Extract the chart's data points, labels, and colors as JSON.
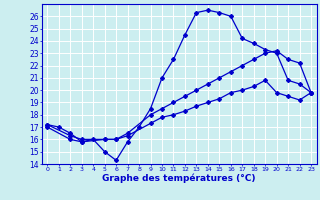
{
  "title": "",
  "xlabel": "Graphe des températures (°C)",
  "ylabel": "",
  "bg_color": "#cceef0",
  "grid_color": "#ffffff",
  "line_color": "#0000cc",
  "ylim": [
    14,
    27
  ],
  "xlim": [
    -0.5,
    23.5
  ],
  "yticks": [
    14,
    15,
    16,
    17,
    18,
    19,
    20,
    21,
    22,
    23,
    24,
    25,
    26
  ],
  "xticks": [
    0,
    1,
    2,
    3,
    4,
    5,
    6,
    7,
    8,
    9,
    10,
    11,
    12,
    13,
    14,
    15,
    16,
    17,
    18,
    19,
    20,
    21,
    22,
    23
  ],
  "series": [
    {
      "x": [
        0,
        1,
        2,
        3,
        4,
        5,
        6,
        7,
        8,
        9,
        10,
        11,
        12,
        13,
        14,
        15,
        16,
        17,
        18,
        19,
        20,
        21,
        22,
        23
      ],
      "y": [
        17.2,
        17.0,
        16.5,
        15.8,
        16.0,
        15.0,
        14.3,
        15.8,
        17.0,
        18.5,
        21.0,
        22.5,
        24.5,
        26.3,
        26.5,
        26.3,
        26.0,
        24.2,
        23.8,
        23.3,
        23.0,
        20.8,
        20.5,
        19.8
      ]
    },
    {
      "x": [
        0,
        2,
        3,
        5,
        6,
        7,
        9,
        10,
        11,
        12,
        13,
        14,
        15,
        16,
        17,
        18,
        19,
        20,
        21,
        22,
        23
      ],
      "y": [
        17.2,
        16.3,
        16.0,
        16.0,
        16.0,
        16.5,
        18.0,
        18.5,
        19.0,
        19.5,
        20.0,
        20.5,
        21.0,
        21.5,
        22.0,
        22.5,
        23.0,
        23.2,
        22.5,
        22.2,
        19.8
      ]
    },
    {
      "x": [
        0,
        2,
        3,
        5,
        6,
        7,
        9,
        10,
        11,
        12,
        13,
        14,
        15,
        16,
        17,
        18,
        19,
        20,
        21,
        22,
        23
      ],
      "y": [
        17.0,
        16.0,
        15.8,
        16.0,
        16.0,
        16.3,
        17.3,
        17.8,
        18.0,
        18.3,
        18.7,
        19.0,
        19.3,
        19.8,
        20.0,
        20.3,
        20.8,
        19.8,
        19.5,
        19.2,
        19.8
      ]
    }
  ]
}
